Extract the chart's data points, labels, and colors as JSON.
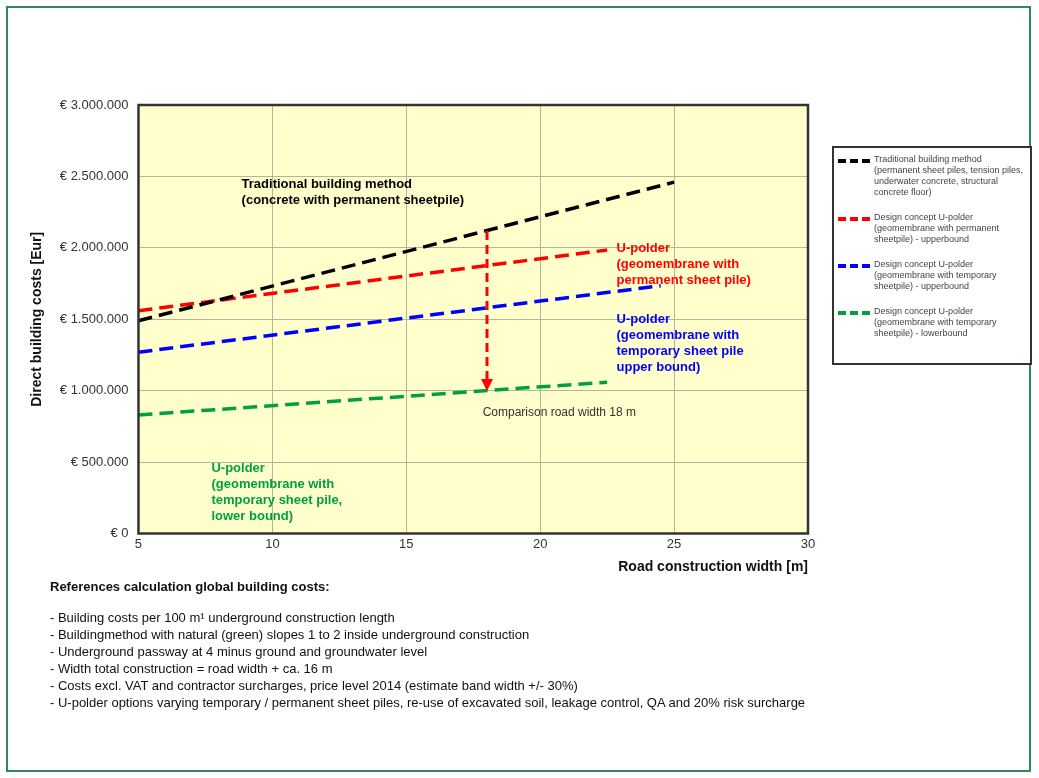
{
  "chart_data": {
    "type": "line",
    "xlabel": "Road construction width [m]",
    "ylabel": "Direct building costs [Eur]",
    "xlim": [
      5,
      30
    ],
    "xticks": [
      5,
      10,
      15,
      20,
      25,
      30
    ],
    "ylim": [
      0,
      3000000
    ],
    "yticks": [
      {
        "value": 0,
        "label": "€ 0"
      },
      {
        "value": 500000,
        "label": "€ 500.000"
      },
      {
        "value": 1000000,
        "label": "€ 1.000.000"
      },
      {
        "value": 1500000,
        "label": "€ 1.500.000"
      },
      {
        "value": 2000000,
        "label": "€ 2.000.000"
      },
      {
        "value": 2500000,
        "label": "€ 2.500.000"
      },
      {
        "value": 3000000,
        "label": "€ 3.000.000"
      }
    ],
    "grid": true,
    "legend": "right",
    "marker": "none",
    "series": [
      {
        "name": "Traditional building method (permanent sheet piles, tension piles, underwater concrete, structural concrete floor)",
        "color": "#000000",
        "line_style": "dashed",
        "x": [
          5,
          25
        ],
        "values": [
          1490000,
          2460000
        ]
      },
      {
        "name": "Design concept U-polder (geomembrane with permanent sheetpile) - upperbound",
        "color": "#ff0000",
        "line_style": "dashed",
        "x": [
          5,
          22.5
        ],
        "values": [
          1560000,
          1985000
        ]
      },
      {
        "name": "Design concept U-polder (geomembrane with temporary sheetpile) - upperbound",
        "color": "#0000ff",
        "line_style": "dashed",
        "x": [
          5,
          24.5
        ],
        "values": [
          1270000,
          1735000
        ]
      },
      {
        "name": "Design concept U-polder (geomembrane with temporary sheetpile) - lowerbound",
        "color": "#00a040",
        "line_style": "dashed",
        "x": [
          5,
          22.5
        ],
        "values": [
          830000,
          1060000
        ]
      }
    ],
    "annotations": [
      "Traditional building method\n(concrete with permanent sheetpile)",
      "U-polder\n(geomembrane with\npermanent sheet pile)",
      "U-polder\n(geomembrane with\ntemporary sheet pile\nupper bound)",
      "U-polder\n(geomembrane with\ntemporary sheet pile,\nlower bound)",
      {
        "text": "Comparison road width 18 m",
        "x": 18,
        "y": 1000000
      },
      "References calculation global building costs:",
      "- Building costs per 100 m¹ underground construction length",
      "- Buildingmethod with natural (green) slopes 1 to 2 inside underground construction",
      "- Underground passway at 4 minus ground and groundwater level",
      "- Width total construction = road width + ca. 16 m",
      "- Costs excl. VAT and contractor surcharges, price level 2014 (estimate band width +/- 30%)",
      "- U-polder options varying temporary / permanent sheet piles, re-use of excavated soil, leakage control, QA and 20% risk surcharge"
    ]
  }
}
